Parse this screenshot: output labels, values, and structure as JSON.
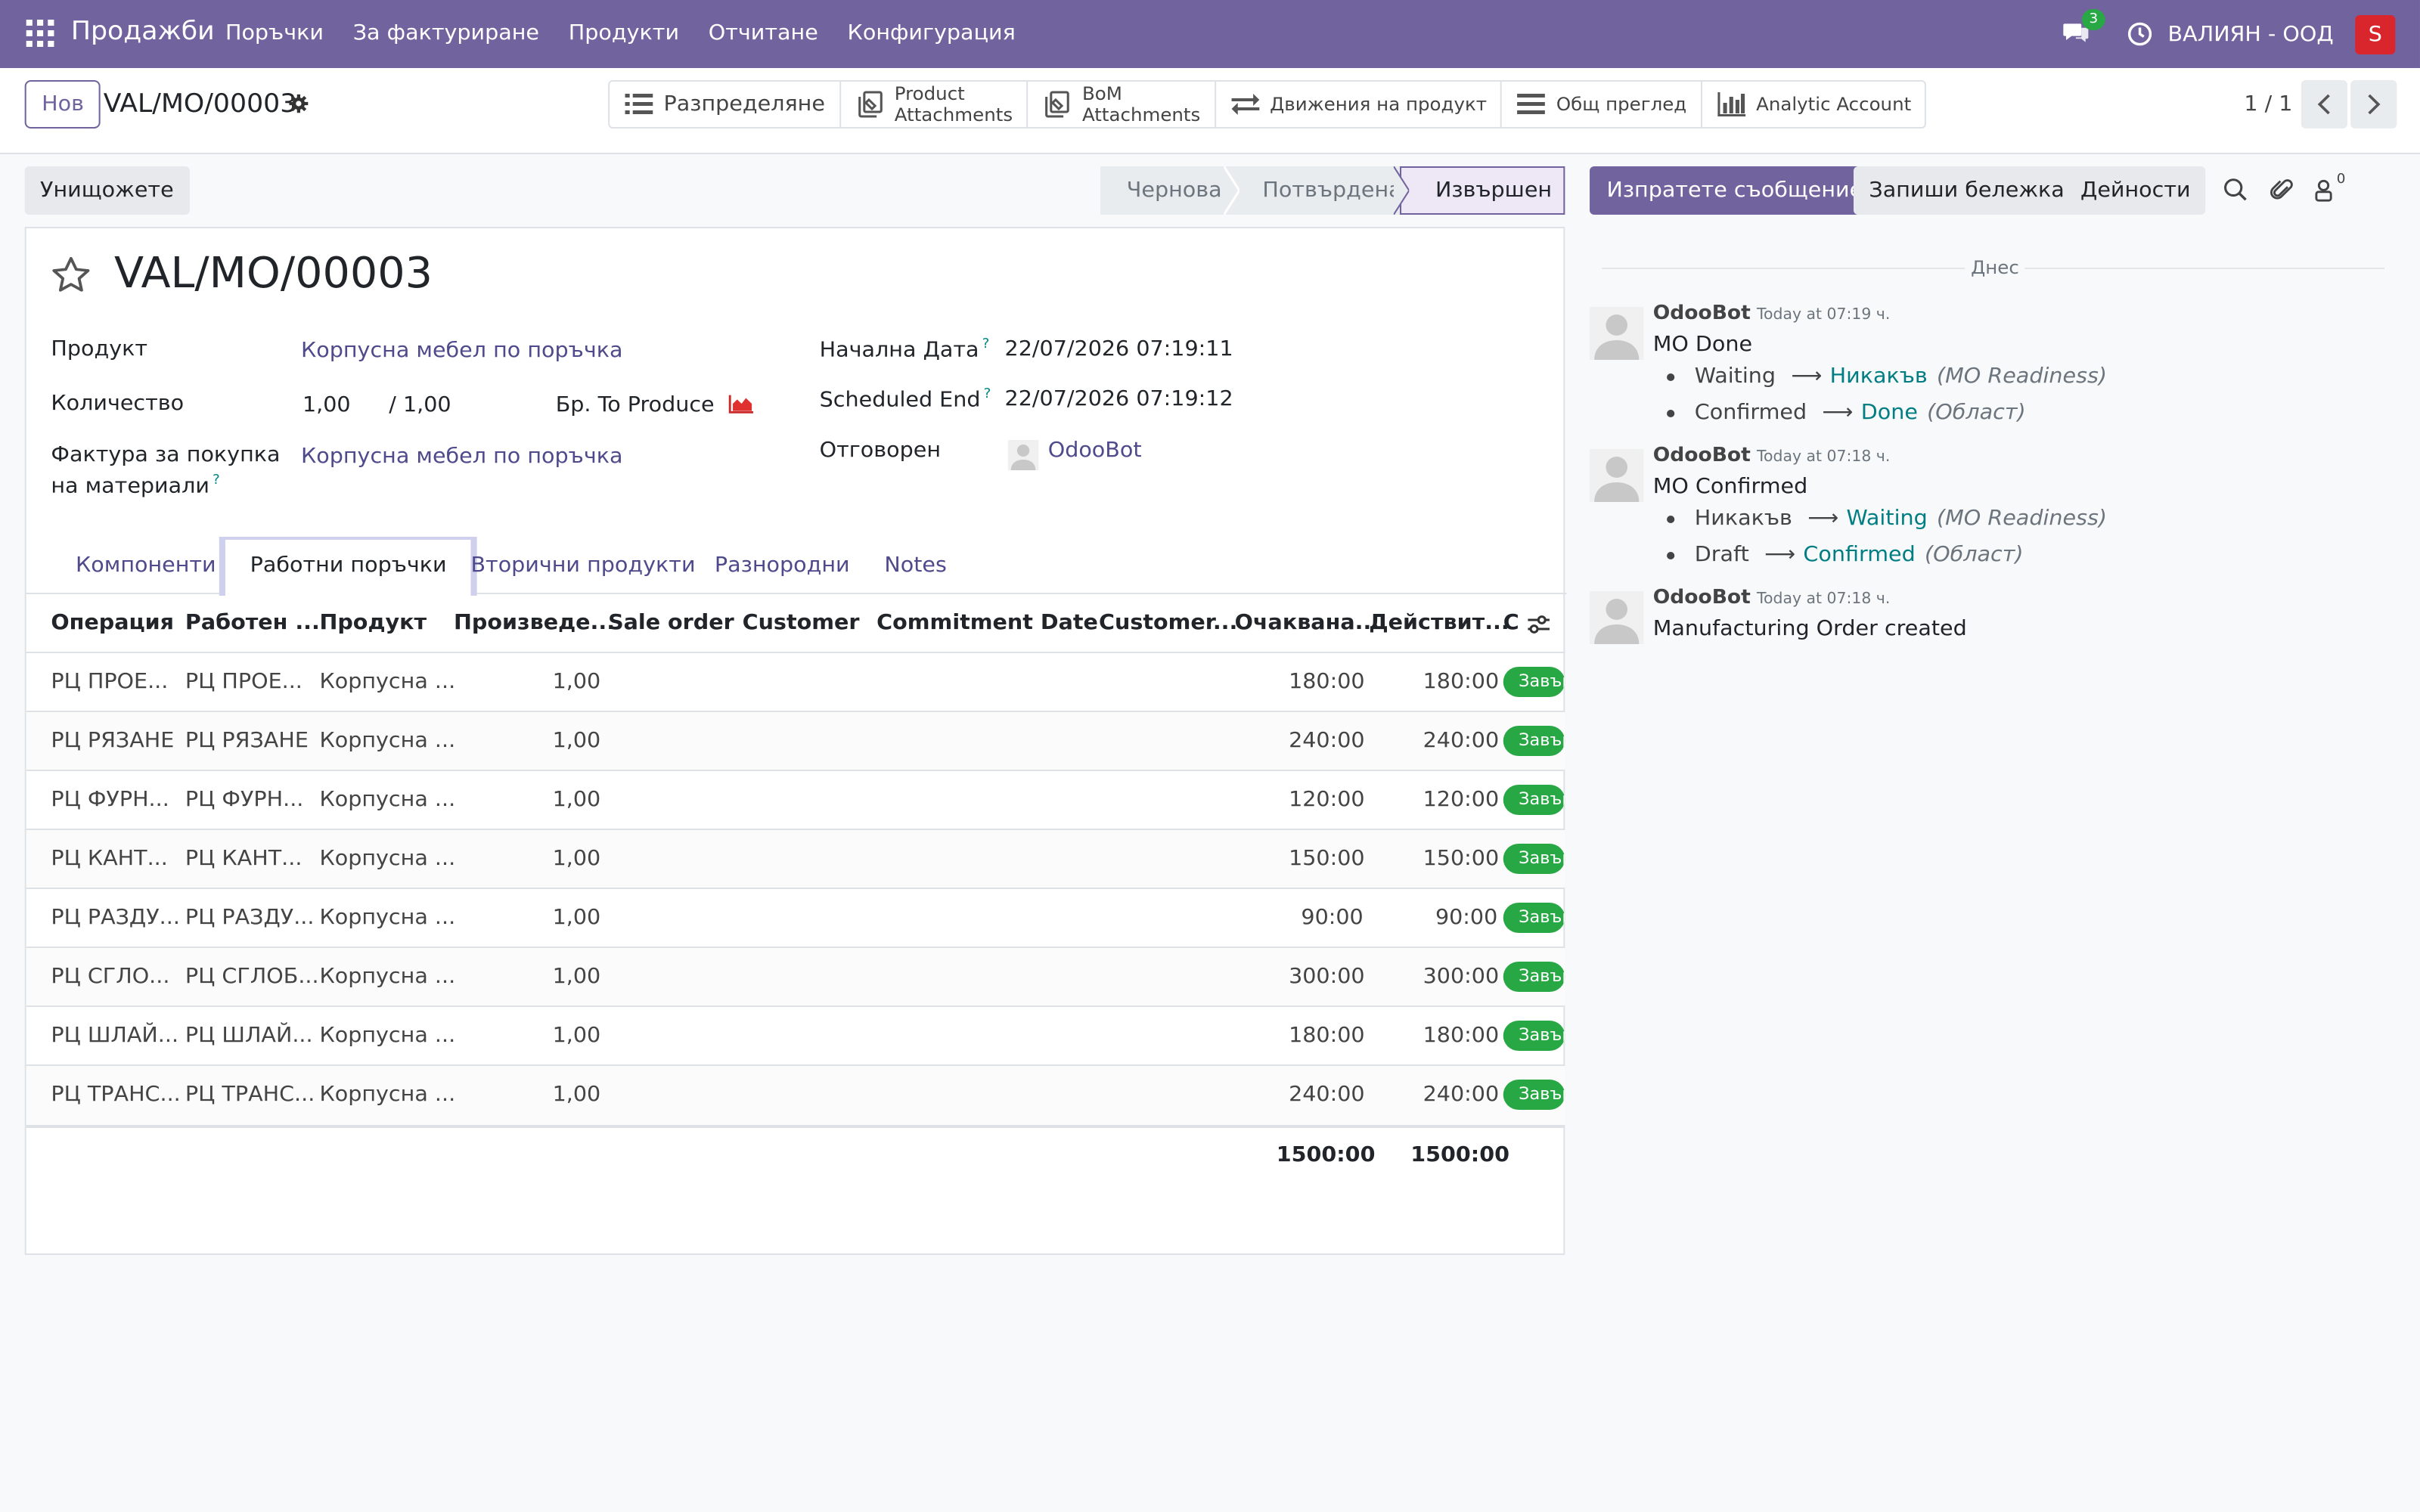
{
  "navbar": {
    "brand": "Продажби",
    "menu": [
      "Поръчки",
      "За фактуриране",
      "Продукти",
      "Отчитане",
      "Конфигурация"
    ],
    "chat_badge": "3",
    "company": "ВАЛИЯН - ООД",
    "user_initial": "S",
    "user_color": "#d9262c",
    "brand_color": "#71639e"
  },
  "control_panel": {
    "new_label": "Нов",
    "record_name": "VAL/MO/00003",
    "smart_buttons": [
      {
        "icon": "list-icon",
        "label": "Разпределяне"
      },
      {
        "icon": "attachments-icon",
        "label_lines": [
          "Product",
          "Attachments"
        ]
      },
      {
        "icon": "attachments-icon",
        "label_lines": [
          "BoM",
          "Attachments"
        ]
      },
      {
        "icon": "exchange-icon",
        "label": "Движения на продукт"
      },
      {
        "icon": "bars-icon",
        "label": "Общ преглед"
      },
      {
        "icon": "bar-chart-icon",
        "label": "Analytic Account"
      }
    ],
    "pager": "1 / 1"
  },
  "status": {
    "cancel_label": "Унищожете",
    "steps": [
      "Чернова",
      "Потвърдена",
      "Извършен"
    ],
    "active_step": "Извършен"
  },
  "form": {
    "title": "VAL/MO/00003",
    "product_label": "Продукт",
    "product_value": "Корпусна мебел по поръчка",
    "quantity_label": "Количество",
    "quantity_value": "1,00",
    "quantity_total": "/ 1,00",
    "uom_label": "Бр.",
    "uom_value": "To Produce",
    "bom_label_1": "Фактура за покупка",
    "bom_label_2": "на материали",
    "bom_value": "Корпусна мебел по поръчка",
    "start_label": "Начална Дата",
    "start_value": "22/07/2026 07:19:11",
    "end_label": "Scheduled End",
    "end_value": "22/07/2026 07:19:12",
    "resp_label": "Отговорен",
    "resp_value": "OdooBot",
    "help_mark": "?"
  },
  "tabs": [
    "Компоненти",
    "Работни поръчки",
    "Вторични продукти",
    "Разнородни",
    "Notes"
  ],
  "active_tab": "Работни поръчки",
  "table": {
    "headers": [
      "Операция",
      "Работен ...",
      "Продукт",
      "Произведе...",
      "Sale order",
      "Customer",
      "Commitment Date",
      "Customer...",
      "Очаквана...",
      "Действит...",
      "С"
    ],
    "rows": [
      {
        "op": "РЦ ПРОЕ...",
        "wc": "РЦ ПРОЕ...",
        "product": "Корпусна ...",
        "qty": "1,00",
        "expected": "180:00",
        "real": "180:00",
        "status": "Завърш"
      },
      {
        "op": "РЦ РЯЗАНЕ",
        "wc": "РЦ РЯЗАНЕ",
        "product": "Корпусна ...",
        "qty": "1,00",
        "expected": "240:00",
        "real": "240:00",
        "status": "Завърш"
      },
      {
        "op": "РЦ ФУРН...",
        "wc": "РЦ ФУРН...",
        "product": "Корпусна ...",
        "qty": "1,00",
        "expected": "120:00",
        "real": "120:00",
        "status": "Завърш"
      },
      {
        "op": "РЦ КАНТ...",
        "wc": "РЦ КАНТ...",
        "product": "Корпусна ...",
        "qty": "1,00",
        "expected": "150:00",
        "real": "150:00",
        "status": "Завърш"
      },
      {
        "op": "РЦ РАЗДУ...",
        "wc": "РЦ РАЗДУ...",
        "product": "Корпусна ...",
        "qty": "1,00",
        "expected": "90:00",
        "real": "90:00",
        "status": "Завърш"
      },
      {
        "op": "РЦ СГЛО...",
        "wc": "РЦ СГЛОБ...",
        "product": "Корпусна ...",
        "qty": "1,00",
        "expected": "300:00",
        "real": "300:00",
        "status": "Завърш"
      },
      {
        "op": "РЦ ШЛАЙ...",
        "wc": "РЦ ШЛАЙ...",
        "product": "Корпусна ...",
        "qty": "1,00",
        "expected": "180:00",
        "real": "180:00",
        "status": "Завърш"
      },
      {
        "op": "РЦ ТРАНС...",
        "wc": "РЦ ТРАНС...",
        "product": "Корпусна ...",
        "qty": "1,00",
        "expected": "240:00",
        "real": "240:00",
        "status": "Завърш"
      }
    ],
    "total_expected": "1500:00",
    "total_real": "1500:00",
    "status_color": "#28a745"
  },
  "chatter": {
    "send_label": "Изпратете съобщение",
    "note_label": "Запиши бележка",
    "activities_label": "Дейности",
    "followers_count": "0",
    "today_label": "Днес",
    "messages": [
      {
        "author": "OdooBot",
        "date": "Today at 07:19 ч.",
        "body": "MO Done",
        "changes": [
          {
            "old": "Waiting",
            "new": "Никакъв",
            "field": "(MO Readiness)"
          },
          {
            "old": "Confirmed",
            "new": "Done",
            "field": "(Област)"
          }
        ]
      },
      {
        "author": "OdooBot",
        "date": "Today at 07:18 ч.",
        "body": "MO Confirmed",
        "changes": [
          {
            "old": "Никакъв",
            "new": "Waiting",
            "field": "(MO Readiness)"
          },
          {
            "old": "Draft",
            "new": "Confirmed",
            "field": "(Област)"
          }
        ]
      },
      {
        "author": "OdooBot",
        "date": "Today at 07:18 ч.",
        "body": "Manufacturing Order created",
        "changes": []
      }
    ]
  }
}
